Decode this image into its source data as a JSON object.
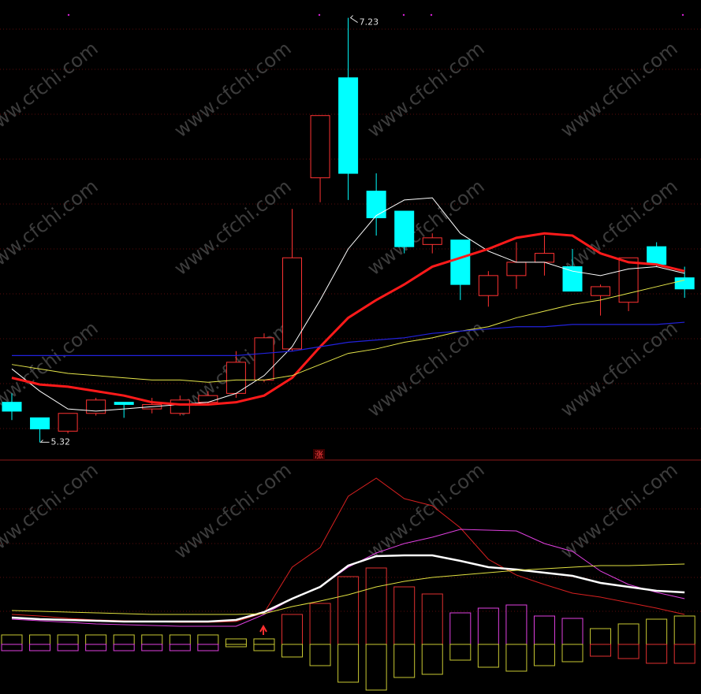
{
  "chart_data": [
    {
      "type": "candlestick",
      "watermark": "www.cfchi.com",
      "annotation": "涨",
      "ylim": [
        5.24,
        7.31
      ],
      "up_color": "#ff3232",
      "down_color": "#00ffff",
      "open": [
        5.5,
        5.43,
        5.37,
        5.45,
        5.5,
        5.47,
        5.45,
        5.5,
        5.54,
        5.6,
        5.74,
        6.51,
        6.96,
        6.45,
        6.36,
        6.21,
        6.23,
        5.98,
        6.07,
        6.13,
        6.11,
        5.98,
        5.95,
        6.2,
        6.06
      ],
      "high": [
        5.54,
        5.43,
        5.45,
        5.52,
        5.5,
        5.52,
        5.53,
        5.55,
        5.73,
        5.81,
        6.37,
        6.79,
        7.23,
        6.53,
        6.36,
        6.26,
        6.23,
        6.09,
        6.22,
        6.25,
        6.19,
        6.03,
        6.15,
        6.22,
        6.11
      ],
      "low": [
        5.42,
        5.32,
        5.36,
        5.44,
        5.43,
        5.45,
        5.44,
        5.49,
        5.52,
        5.59,
        5.73,
        6.4,
        6.41,
        6.25,
        6.17,
        6.17,
        5.96,
        5.93,
        6.01,
        6.07,
        6.0,
        5.89,
        5.91,
        6.11,
        5.97
      ],
      "close": [
        5.46,
        5.38,
        5.45,
        5.51,
        5.49,
        5.49,
        5.51,
        5.53,
        5.68,
        5.79,
        6.15,
        6.79,
        6.53,
        6.33,
        6.2,
        6.24,
        6.03,
        6.07,
        6.13,
        6.17,
        6.0,
        6.02,
        6.15,
        6.12,
        6.01
      ],
      "lines": [
        {
          "color": "#ffffff",
          "width": 1,
          "values": [
            5.65,
            5.55,
            5.47,
            5.46,
            5.47,
            5.48,
            5.49,
            5.5,
            5.54,
            5.62,
            5.75,
            5.96,
            6.19,
            6.34,
            6.41,
            6.42,
            6.26,
            6.18,
            6.13,
            6.13,
            6.09,
            6.07,
            6.1,
            6.11,
            6.08
          ]
        },
        {
          "color": "#ff1a1a",
          "width": 3,
          "values": [
            5.61,
            5.58,
            5.57,
            5.55,
            5.53,
            5.5,
            5.49,
            5.49,
            5.5,
            5.53,
            5.61,
            5.75,
            5.88,
            5.96,
            6.03,
            6.11,
            6.15,
            6.19,
            6.24,
            6.26,
            6.25,
            6.17,
            6.13,
            6.12,
            6.09
          ]
        },
        {
          "color": "#e6e64a",
          "width": 1,
          "values": [
            5.67,
            5.65,
            5.63,
            5.62,
            5.61,
            5.6,
            5.6,
            5.59,
            5.6,
            5.6,
            5.62,
            5.67,
            5.72,
            5.74,
            5.77,
            5.79,
            5.82,
            5.84,
            5.88,
            5.91,
            5.94,
            5.96,
            5.99,
            6.02,
            6.05
          ]
        },
        {
          "color": "#2222dd",
          "width": 1.2,
          "values": [
            5.71,
            5.71,
            5.71,
            5.71,
            5.71,
            5.71,
            5.71,
            5.71,
            5.71,
            5.72,
            5.73,
            5.75,
            5.77,
            5.78,
            5.79,
            5.81,
            5.82,
            5.83,
            5.84,
            5.84,
            5.85,
            5.85,
            5.85,
            5.85,
            5.86
          ]
        }
      ]
    },
    {
      "type": "indicator",
      "ylim": [
        -63,
        228
      ],
      "bars_positive": {
        "values": [
          12,
          12,
          12,
          12,
          12,
          12,
          12,
          12,
          7,
          7,
          38,
          52,
          86,
          97,
          73,
          64,
          40,
          46,
          50,
          36,
          33,
          20,
          26,
          32,
          36
        ],
        "colors": [
          "#c8c832",
          "#c8c832",
          "#c8c832",
          "#c8c832",
          "#c8c832",
          "#c8c832",
          "#c8c832",
          "#c8c832",
          "#c8c832",
          "#c8c832",
          "#e03030",
          "#e03030",
          "#e03030",
          "#e03030",
          "#e03030",
          "#e03030",
          "#e040e0",
          "#e040e0",
          "#e040e0",
          "#e040e0",
          "#e040e0",
          "#c8c832",
          "#c8c832",
          "#c8c832",
          "#c8c832"
        ]
      },
      "bars_negative": {
        "values": [
          -8,
          -8,
          -8,
          -8,
          -8,
          -8,
          -8,
          -8,
          -3,
          -8,
          -16,
          -27,
          -48,
          -58,
          -42,
          -38,
          -20,
          -29,
          -34,
          -27,
          -22,
          -15,
          -18,
          -24,
          -24
        ],
        "colors": [
          "#e040e0",
          "#e040e0",
          "#e040e0",
          "#e040e0",
          "#e040e0",
          "#e040e0",
          "#e040e0",
          "#e040e0",
          "#c8c832",
          "#c8c832",
          "#c8c832",
          "#c8c832",
          "#c8c832",
          "#c8c832",
          "#c8c832",
          "#c8c832",
          "#c8c832",
          "#c8c832",
          "#c8c832",
          "#c8c832",
          "#c8c832",
          "#e03030",
          "#e03030",
          "#e03030",
          "#e03030"
        ]
      },
      "lines": [
        {
          "color": "#d82020",
          "width": 1,
          "values": [
            38,
            36,
            33,
            31,
            30,
            29,
            28,
            28,
            29,
            40,
            98,
            123,
            188,
            211,
            185,
            176,
            148,
            108,
            88,
            76,
            65,
            60,
            53,
            46,
            38
          ]
        },
        {
          "color": "#e040e0",
          "width": 1,
          "values": [
            32,
            30,
            28,
            26,
            25,
            24,
            23,
            23,
            23,
            38,
            58,
            73,
            98,
            116,
            128,
            136,
            146,
            145,
            144,
            128,
            118,
            93,
            76,
            66,
            58
          ]
        },
        {
          "color": "#ffffff",
          "width": 2.5,
          "values": [
            34,
            32,
            31,
            30,
            29,
            29,
            29,
            29,
            31,
            41,
            58,
            73,
            100,
            112,
            113,
            113,
            106,
            98,
            95,
            91,
            87,
            78,
            73,
            68,
            66
          ]
        },
        {
          "color": "#e0e040",
          "width": 1,
          "values": [
            43,
            42,
            41,
            40,
            39,
            38,
            38,
            38,
            38,
            39,
            48,
            55,
            63,
            73,
            80,
            85,
            88,
            91,
            94,
            96,
            98,
            100,
            100,
            101,
            102
          ]
        }
      ]
    }
  ]
}
